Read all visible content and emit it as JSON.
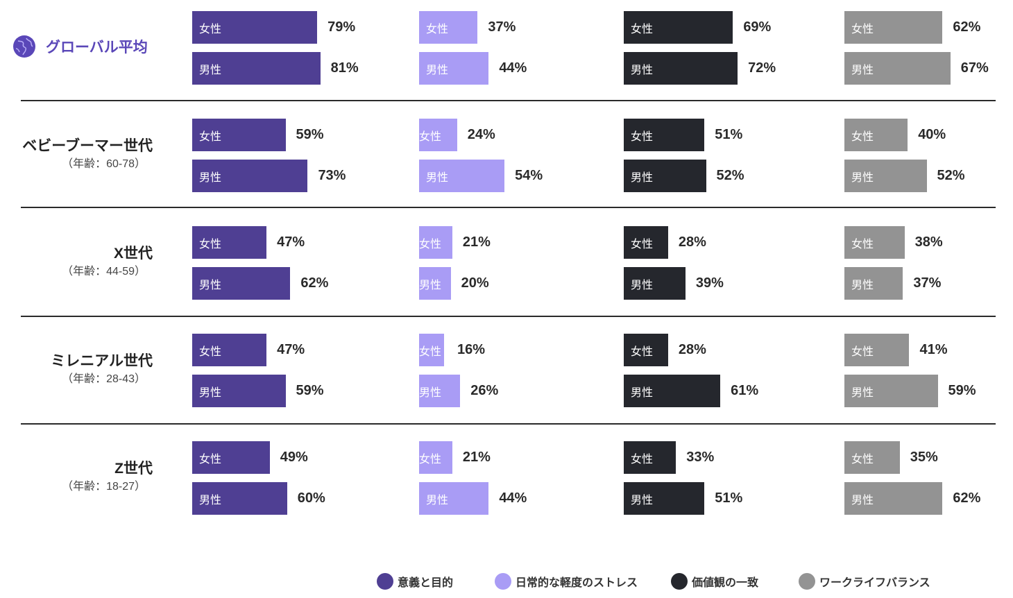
{
  "colors": {
    "purpose": "#4f3f93",
    "stress": "#a99cf5",
    "values": "#25272d",
    "balance": "#939393"
  },
  "gender_labels": {
    "women": "女性",
    "men": "男性"
  },
  "legend": [
    {
      "key": "purpose",
      "label": "意義と目的"
    },
    {
      "key": "stress",
      "label": "日常的な軽度のストレス"
    },
    {
      "key": "values",
      "label": "価値観の一致"
    },
    {
      "key": "balance",
      "label": "ワークライフバランス"
    }
  ],
  "chart_data": {
    "type": "bar",
    "title": "",
    "categories": [
      "グローバル平均",
      "ベビーブーマー世代",
      "X世代",
      "ミレニアル世代",
      "Z世代"
    ],
    "category_subtitles": [
      "",
      "（年齢：60-78）",
      "（年齢：44-59）",
      "（年齢：28-43）",
      "（年齢：18-27）"
    ],
    "series": [
      {
        "key": "purpose",
        "name": "意義と目的",
        "women": [
          79,
          59,
          47,
          47,
          49
        ],
        "men": [
          81,
          73,
          62,
          59,
          60
        ]
      },
      {
        "key": "stress",
        "name": "日常的な軽度のストレス",
        "women": [
          37,
          24,
          21,
          16,
          21
        ],
        "men": [
          44,
          54,
          20,
          26,
          44
        ]
      },
      {
        "key": "values",
        "name": "価値観の一致",
        "women": [
          69,
          51,
          28,
          28,
          33
        ],
        "men": [
          72,
          52,
          39,
          61,
          51
        ]
      },
      {
        "key": "balance",
        "name": "ワークライフバランス",
        "women": [
          62,
          40,
          38,
          41,
          35
        ],
        "men": [
          67,
          52,
          37,
          59,
          62
        ]
      }
    ],
    "unit": "%",
    "xlabel": "",
    "ylabel": "",
    "xlim": [
      0,
      100
    ]
  }
}
